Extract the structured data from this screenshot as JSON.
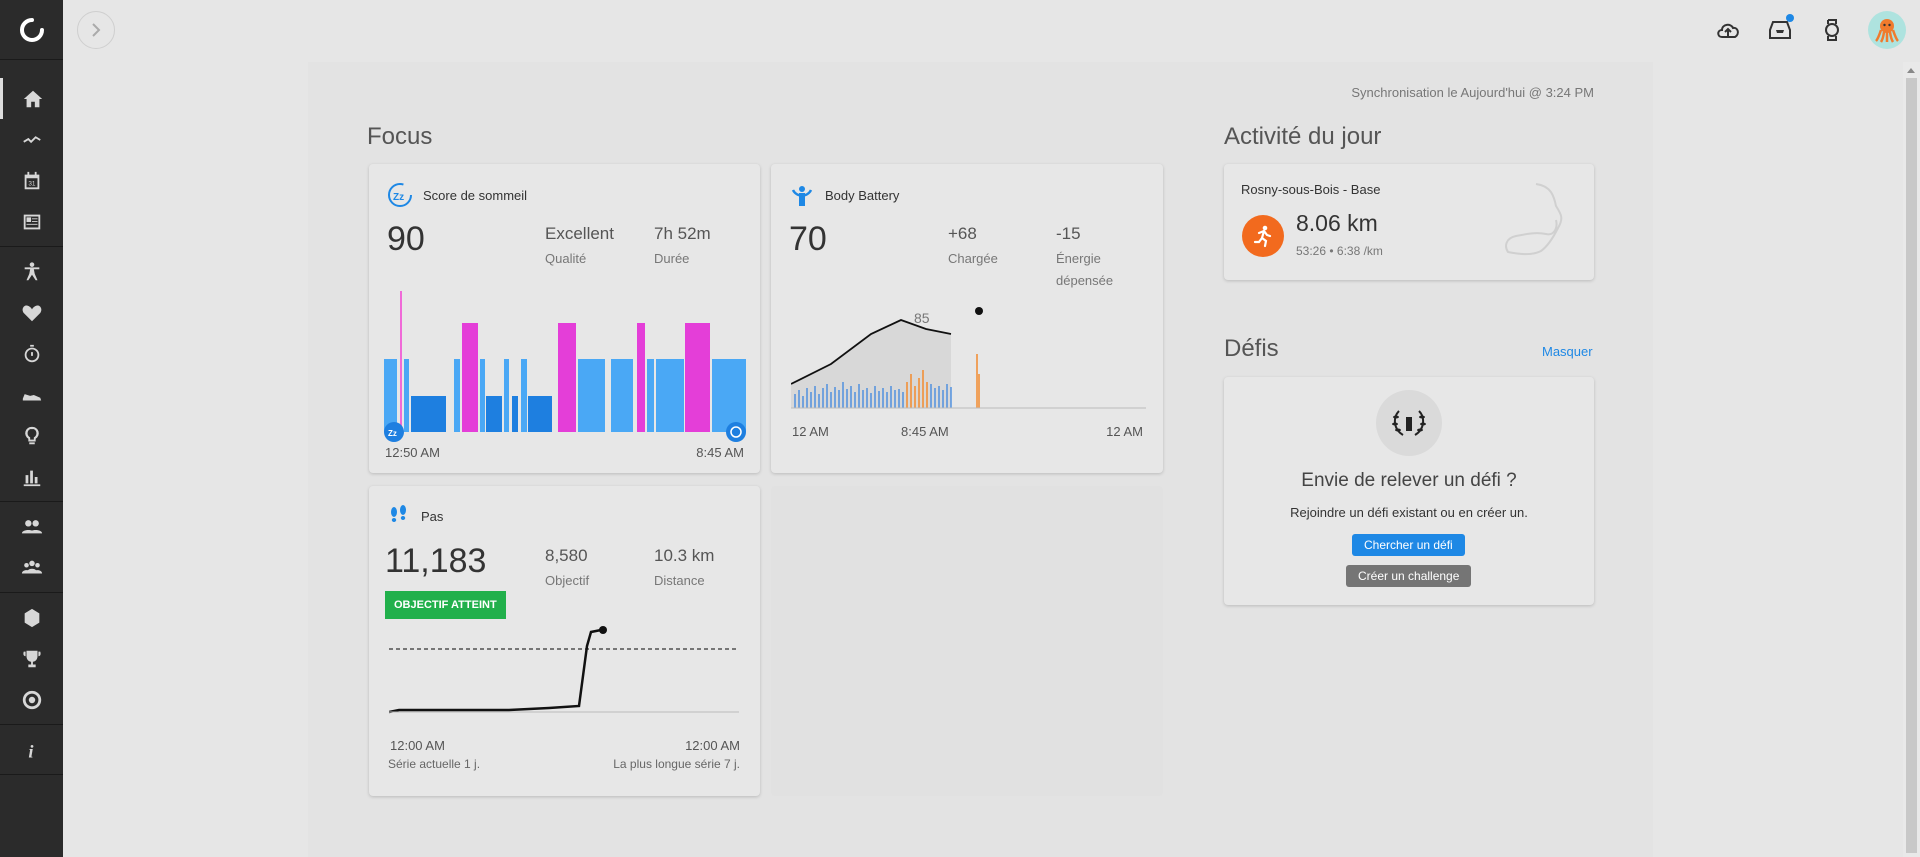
{
  "topbar": {
    "sync_text": "Synchronisation le Aujourd'hui @ 3:24 PM"
  },
  "focus": {
    "title": "Focus",
    "sleep": {
      "title": "Score de sommeil",
      "score": "90",
      "quality_value": "Excellent",
      "quality_label": "Qualité",
      "duration_value": "7h 52m",
      "duration_label": "Durée",
      "start_time": "12:50 AM",
      "end_time": "8:45 AM"
    },
    "battery": {
      "title": "Body Battery",
      "value": "70",
      "charged_value": "+68",
      "charged_label": "Chargée",
      "spent_value": "-15",
      "spent_label_1": "Énergie",
      "spent_label_2": "dépensée",
      "peak_label": "85",
      "x_labels": [
        "12 AM",
        "8:45 AM",
        "12 AM"
      ]
    },
    "steps": {
      "title": "Pas",
      "value": "11,183",
      "badge": "OBJECTIF ATTEINT",
      "goal_value": "8,580",
      "goal_label": "Objectif",
      "distance_value": "10.3 km",
      "distance_label": "Distance",
      "start_time": "12:00 AM",
      "end_time": "12:00 AM",
      "current_streak": "Série actuelle 1 j.",
      "longest_streak": "La plus longue série 7 j."
    }
  },
  "activity": {
    "title": "Activité du jour",
    "name": "Rosny-sous-Bois - Base",
    "distance": "8.06 km",
    "details": "53:26 • 6:38 /km",
    "icon": "running-icon"
  },
  "challenges": {
    "title": "Défis",
    "hide_link": "Masquer",
    "heading": "Envie de relever un défi ?",
    "text": "Rejoindre un défi existant ou en créer un.",
    "search_button": "Chercher un défi",
    "create_button": "Créer un challenge"
  },
  "colors": {
    "accent": "#1e88e5",
    "deep_sleep": "#1e7fe0",
    "light_sleep": "#4aa8f5",
    "rem": "#e43ed8",
    "awake": "#f06ad8",
    "orange": "#f28a2e",
    "green": "#21b04b"
  }
}
